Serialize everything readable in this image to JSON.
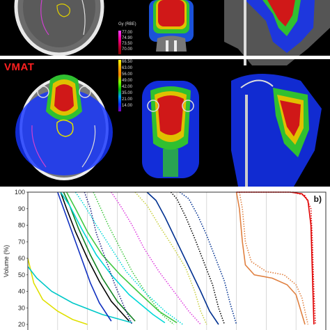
{
  "method_label": "VMAT",
  "top_colorbar": {
    "unit": "Gy (RBE)",
    "levels": [
      "77.00",
      "74.90",
      "73.50",
      "70.00"
    ]
  },
  "vmat_colorbar": {
    "levels": [
      "66.50",
      "63.00",
      "56.00",
      "49.00",
      "42.00",
      "35.00",
      "21.00",
      "14.00"
    ]
  },
  "panel_letter": "b)",
  "chart_data": {
    "type": "line",
    "ylabel": "Volume (%)",
    "y_ticks": [
      "100",
      "90",
      "80",
      "70",
      "60",
      "50",
      "40",
      "30",
      "20"
    ],
    "ylim": [
      20,
      100
    ],
    "grid": true,
    "series": [
      {
        "color": "#e0e000",
        "style": "solid",
        "points": [
          [
            0,
            60
          ],
          [
            2,
            45
          ],
          [
            5,
            35
          ],
          [
            10,
            28
          ],
          [
            15,
            23
          ],
          [
            20,
            20
          ]
        ]
      },
      {
        "color": "#00c8c8",
        "style": "solid",
        "points": [
          [
            0,
            55
          ],
          [
            3,
            48
          ],
          [
            8,
            40
          ],
          [
            15,
            33
          ],
          [
            25,
            26
          ],
          [
            35,
            21
          ]
        ]
      },
      {
        "color": "#1030c0",
        "style": "solid",
        "points": [
          [
            10,
            100
          ],
          [
            12,
            90
          ],
          [
            15,
            75
          ],
          [
            18,
            60
          ],
          [
            21,
            45
          ],
          [
            24,
            33
          ],
          [
            28,
            22
          ]
        ]
      },
      {
        "color": "#108020",
        "style": "solid",
        "points": [
          [
            12,
            100
          ],
          [
            14,
            92
          ],
          [
            17,
            78
          ],
          [
            21,
            62
          ],
          [
            25,
            48
          ],
          [
            30,
            34
          ],
          [
            36,
            22
          ]
        ]
      },
      {
        "color": "#000000",
        "style": "solid",
        "points": [
          [
            11,
            100
          ],
          [
            13,
            90
          ],
          [
            16,
            76
          ],
          [
            20,
            60
          ],
          [
            24,
            46
          ],
          [
            28,
            34
          ],
          [
            34,
            22
          ]
        ]
      },
      {
        "color": "#00d8d8",
        "style": "solid",
        "points": [
          [
            11,
            100
          ],
          [
            14,
            92
          ],
          [
            18,
            78
          ],
          [
            23,
            62
          ],
          [
            28,
            50
          ],
          [
            34,
            38
          ],
          [
            42,
            26
          ],
          [
            46,
            21
          ]
        ]
      },
      {
        "color": "#40c840",
        "style": "solid",
        "points": [
          [
            13,
            100
          ],
          [
            16,
            90
          ],
          [
            20,
            76
          ],
          [
            25,
            62
          ],
          [
            31,
            50
          ],
          [
            38,
            38
          ],
          [
            44,
            28
          ],
          [
            50,
            21
          ]
        ]
      },
      {
        "color": "#003090",
        "style": "solid",
        "points": [
          [
            40,
            100
          ],
          [
            43,
            95
          ],
          [
            46,
            85
          ],
          [
            50,
            70
          ],
          [
            54,
            55
          ],
          [
            58,
            40
          ],
          [
            61,
            28
          ],
          [
            64,
            20
          ]
        ]
      },
      {
        "color": "#202080",
        "style": "dotted",
        "points": [
          [
            19,
            100
          ],
          [
            21,
            90
          ],
          [
            23,
            75
          ],
          [
            26,
            60
          ],
          [
            29,
            45
          ],
          [
            32,
            32
          ],
          [
            35,
            20
          ]
        ]
      },
      {
        "color": "#40c840",
        "style": "dotted",
        "points": [
          [
            22,
            100
          ],
          [
            24,
            92
          ],
          [
            27,
            80
          ],
          [
            31,
            66
          ],
          [
            35,
            52
          ],
          [
            40,
            38
          ],
          [
            45,
            26
          ],
          [
            49,
            20
          ]
        ]
      },
      {
        "color": "#00d8d8",
        "style": "dotted",
        "points": [
          [
            16,
            100
          ],
          [
            19,
            92
          ],
          [
            23,
            80
          ],
          [
            28,
            66
          ],
          [
            33,
            52
          ],
          [
            39,
            40
          ],
          [
            46,
            28
          ],
          [
            52,
            20
          ]
        ]
      },
      {
        "color": "#e040e0",
        "style": "dotted",
        "points": [
          [
            28,
            100
          ],
          [
            31,
            92
          ],
          [
            35,
            80
          ],
          [
            39,
            66
          ],
          [
            44,
            52
          ],
          [
            49,
            40
          ],
          [
            54,
            28
          ],
          [
            58,
            20
          ]
        ]
      },
      {
        "color": "#c8d040",
        "style": "dotted",
        "points": [
          [
            36,
            100
          ],
          [
            40,
            92
          ],
          [
            44,
            80
          ],
          [
            49,
            66
          ],
          [
            53,
            54
          ],
          [
            56,
            40
          ],
          [
            58,
            28
          ],
          [
            60,
            20
          ]
        ]
      },
      {
        "color": "#000000",
        "style": "dotted",
        "points": [
          [
            48,
            100
          ],
          [
            50,
            96
          ],
          [
            53,
            85
          ],
          [
            56,
            72
          ],
          [
            59,
            58
          ],
          [
            62,
            44
          ],
          [
            64,
            30
          ],
          [
            66,
            20
          ]
        ]
      },
      {
        "color": "#003090",
        "style": "dotted",
        "points": [
          [
            51,
            100
          ],
          [
            54,
            96
          ],
          [
            57,
            86
          ],
          [
            60,
            74
          ],
          [
            63,
            60
          ],
          [
            66,
            46
          ],
          [
            68,
            32
          ],
          [
            70,
            20
          ]
        ]
      },
      {
        "color": "#e08040",
        "style": "solid",
        "points": [
          [
            70,
            100
          ],
          [
            71,
            90
          ],
          [
            72,
            70
          ],
          [
            73,
            56
          ],
          [
            76,
            50
          ],
          [
            82,
            48
          ],
          [
            87,
            44
          ],
          [
            90,
            38
          ],
          [
            93,
            20
          ]
        ]
      },
      {
        "color": "#e08040",
        "style": "dotted",
        "points": [
          [
            71,
            100
          ],
          [
            72,
            90
          ],
          [
            73,
            70
          ],
          [
            75,
            58
          ],
          [
            80,
            52
          ],
          [
            86,
            50
          ],
          [
            90,
            44
          ],
          [
            92,
            36
          ],
          [
            94,
            20
          ]
        ]
      },
      {
        "color": "#e00000",
        "style": "solid",
        "points": [
          [
            70,
            100
          ],
          [
            88,
            100
          ],
          [
            92,
            99
          ],
          [
            94,
            95
          ],
          [
            95,
            80
          ],
          [
            95.5,
            50
          ],
          [
            96,
            20
          ]
        ]
      },
      {
        "color": "#e00000",
        "style": "dotted",
        "points": [
          [
            70,
            100
          ],
          [
            89,
            100
          ],
          [
            93,
            98
          ],
          [
            95,
            90
          ],
          [
            95.5,
            70
          ],
          [
            96,
            40
          ],
          [
            96.5,
            20
          ]
        ]
      }
    ]
  }
}
